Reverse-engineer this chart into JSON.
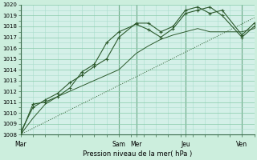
{
  "background_color": "#cceedd",
  "plot_bg_color": "#d4f0e8",
  "grid_color_major": "#88ccaa",
  "grid_color_minor": "#aaddcc",
  "line_color_dark": "#2d5a2d",
  "line_color_mid": "#3a7a3a",
  "xlabel": "Pression niveau de la mer( hPa )",
  "ylim": [
    1008,
    1020
  ],
  "yticks": [
    1008,
    1009,
    1010,
    1011,
    1012,
    1013,
    1014,
    1015,
    1016,
    1017,
    1018,
    1019,
    1020
  ],
  "xlim": [
    0,
    9.5
  ],
  "day_labels": [
    "Mar",
    "Sam",
    "Mer",
    "Jeu",
    "Ven"
  ],
  "day_positions": [
    0,
    4.0,
    4.7,
    6.7,
    9.0
  ],
  "vline_positions": [
    0,
    4.0,
    4.7,
    6.7,
    9.0
  ],
  "trend_x": [
    0,
    9.5
  ],
  "trend_y": [
    1008.0,
    1018.8
  ],
  "series_thin_x": [
    0,
    0.5,
    1,
    1.5,
    2,
    2.5,
    3,
    3.5,
    4.0,
    4.7,
    5.2,
    5.7,
    6.2,
    6.7,
    7.2,
    7.7,
    8.2,
    9.0,
    9.5
  ],
  "series_thin_y": [
    1008.0,
    1009.5,
    1010.8,
    1011.5,
    1012.0,
    1012.5,
    1013.0,
    1013.5,
    1014.0,
    1015.5,
    1016.2,
    1016.8,
    1017.2,
    1017.5,
    1017.8,
    1017.5,
    1017.5,
    1017.5,
    1017.8
  ],
  "series1_x": [
    0,
    0.5,
    1.0,
    1.5,
    2.0,
    2.5,
    3.0,
    3.5,
    4.0,
    4.7,
    5.2,
    5.7,
    6.2,
    6.7,
    7.2,
    7.7,
    8.2,
    9.0,
    9.5
  ],
  "series1_y": [
    1008.2,
    1010.5,
    1011.2,
    1011.8,
    1012.8,
    1013.5,
    1014.3,
    1015.0,
    1017.0,
    1018.3,
    1018.3,
    1017.5,
    1018.0,
    1019.5,
    1019.8,
    1019.2,
    1019.5,
    1017.2,
    1018.3
  ],
  "series2_x": [
    0,
    0.5,
    1.0,
    1.5,
    2.0,
    2.5,
    3.0,
    3.5,
    4.0,
    4.7,
    5.2,
    5.7,
    6.2,
    6.7,
    7.2,
    7.7,
    8.2,
    9.0,
    9.5
  ],
  "series2_y": [
    1008.0,
    1010.8,
    1011.0,
    1011.5,
    1012.3,
    1013.8,
    1014.5,
    1016.5,
    1017.5,
    1018.2,
    1017.7,
    1017.0,
    1017.8,
    1019.2,
    1019.5,
    1019.8,
    1019.0,
    1017.0,
    1018.0
  ]
}
